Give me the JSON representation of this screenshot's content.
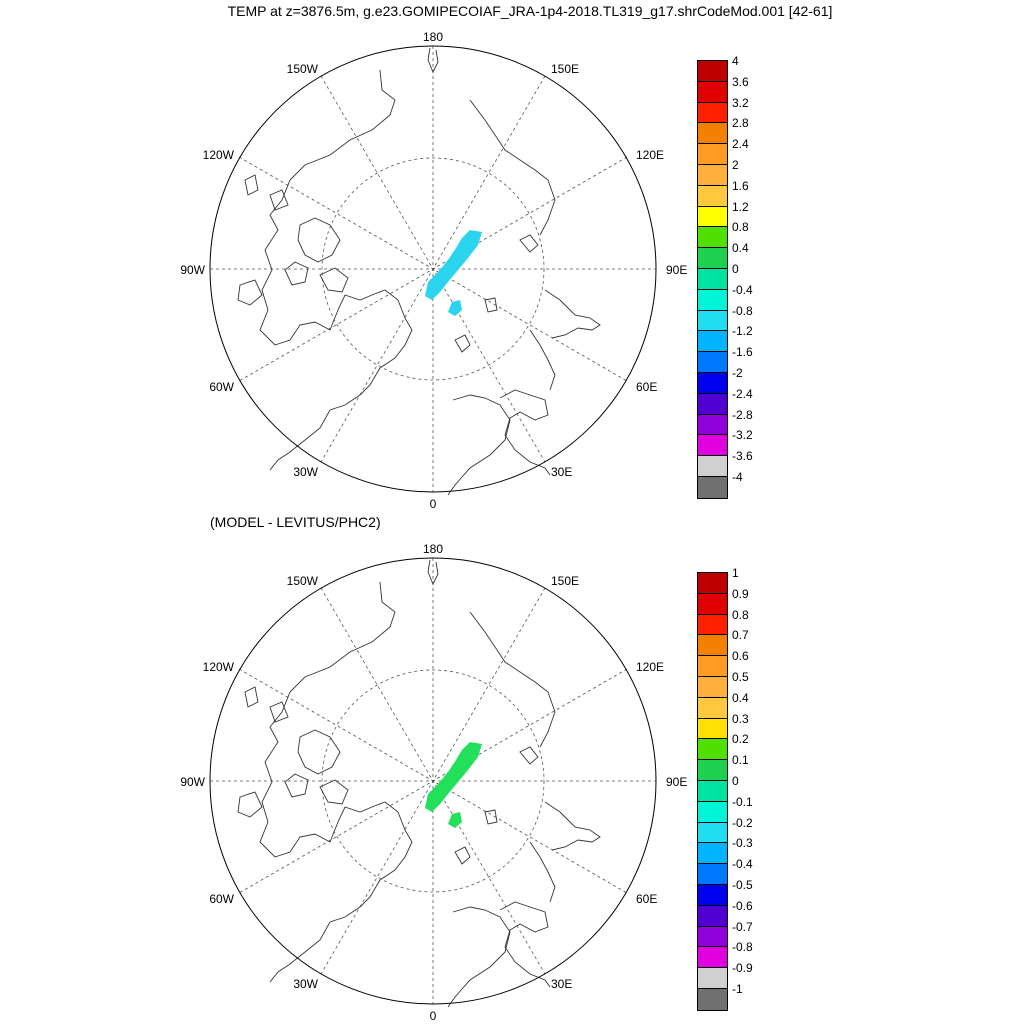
{
  "title": "TEMP at z=3876.5m, g.e23.GOMIPECOIAF_JRA-1p4-2018.TL319_g17.shrCodeMod.001 [42-61]",
  "subtitle": "(MODEL - LEVITUS/PHC2)",
  "longitude_labels": {
    "top": "180",
    "bottom": "0",
    "left": "90W",
    "right": "90E",
    "upper_left_outer": "150W",
    "upper_right_outer": "150E",
    "upper_left": "120W",
    "upper_right": "120E",
    "lower_left": "60W",
    "lower_right": "60E",
    "lower_left_outer": "30W",
    "lower_right_outer": "30E"
  },
  "maps": [
    {
      "id": "top",
      "field": "model temperature",
      "colorbar": {
        "labels": [
          "4",
          "3.6",
          "3.2",
          "2.8",
          "2.4",
          "2",
          "1.6",
          "1.2",
          "0.8",
          "0.4",
          "0",
          "-0.4",
          "-0.8",
          "-1.2",
          "-1.6",
          "-2",
          "-2.4",
          "-2.8",
          "-3.2",
          "-3.6",
          "-4"
        ],
        "colors": [
          "#c00000",
          "#e00000",
          "#ff2000",
          "#f38000",
          "#ff9a22",
          "#ffb03a",
          "#ffc83e",
          "#ffff00",
          "#50e000",
          "#20d050",
          "#00e3a0",
          "#00f5d8",
          "#22dcf0",
          "#00b4ff",
          "#0078ff",
          "#0000f0",
          "#5000d0",
          "#9000d8",
          "#e000e0",
          "#d0d0d0",
          "#707070"
        ]
      },
      "patch_color": "#2ad4ee",
      "patch_value_range": "-0.8 to -0.4"
    },
    {
      "id": "bottom",
      "field": "model minus Levitus/PHC2 difference",
      "colorbar": {
        "labels": [
          "1",
          "0.9",
          "0.8",
          "0.7",
          "0.6",
          "0.5",
          "0.4",
          "0.3",
          "0.2",
          "0.1",
          "0",
          "-0.1",
          "-0.2",
          "-0.3",
          "-0.4",
          "-0.5",
          "-0.6",
          "-0.7",
          "-0.8",
          "-0.9",
          "-1"
        ],
        "colors": [
          "#c00000",
          "#e00000",
          "#ff2000",
          "#f38000",
          "#ff9a22",
          "#ffb03a",
          "#ffc83e",
          "#ffe000",
          "#50e000",
          "#20d050",
          "#00e3a0",
          "#00f5d8",
          "#22dcf0",
          "#00b4ff",
          "#0078ff",
          "#0000f0",
          "#5000d0",
          "#9000d8",
          "#e000e0",
          "#d0d0d0",
          "#707070"
        ]
      },
      "patch_color": "#22e05a",
      "patch_value_range": "0 to 0.1"
    }
  ]
}
